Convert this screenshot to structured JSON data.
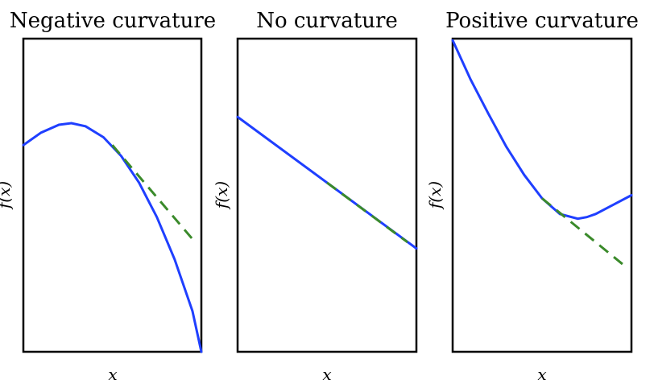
{
  "chart_data": [
    {
      "type": "line",
      "title": "Negative curvature",
      "xlabel": "x",
      "ylabel": "f(x)",
      "xlim": [
        0,
        1
      ],
      "ylim": [
        0,
        1
      ],
      "grid": false,
      "colors": {
        "function": "#1f3fff",
        "tangent": "#3a8a2a"
      },
      "series": [
        {
          "style": "solid",
          "x": [
            0,
            0.1,
            0.2,
            0.27,
            0.35,
            0.45,
            0.55,
            0.65,
            0.75,
            0.85,
            0.95,
            1.0
          ],
          "y": [
            0.66,
            0.7,
            0.725,
            0.73,
            0.72,
            0.685,
            0.625,
            0.54,
            0.43,
            0.295,
            0.13,
            0.0
          ]
        },
        {
          "style": "dashed",
          "x": [
            0.5,
            0.95
          ],
          "y": [
            0.66,
            0.36
          ]
        }
      ]
    },
    {
      "type": "line",
      "title": "No curvature",
      "xlabel": "x",
      "ylabel": "f(x)",
      "xlim": [
        0,
        1
      ],
      "ylim": [
        0,
        1
      ],
      "grid": false,
      "colors": {
        "function": "#1f3fff",
        "tangent": "#3a8a2a"
      },
      "series": [
        {
          "style": "solid",
          "x": [
            0,
            1
          ],
          "y": [
            0.75,
            0.33
          ]
        },
        {
          "style": "dashed",
          "x": [
            0.5,
            0.95
          ],
          "y": [
            0.54,
            0.35
          ]
        }
      ]
    },
    {
      "type": "line",
      "title": "Positive curvature",
      "xlabel": "x",
      "ylabel": "f(x)",
      "xlim": [
        0,
        1
      ],
      "ylim": [
        0,
        1
      ],
      "grid": false,
      "colors": {
        "function": "#1f3fff",
        "tangent": "#3a8a2a"
      },
      "series": [
        {
          "style": "solid",
          "x": [
            0,
            0.1,
            0.2,
            0.3,
            0.4,
            0.5,
            0.6,
            0.7,
            0.75,
            0.8,
            0.9,
            1.0
          ],
          "y": [
            0.995,
            0.87,
            0.76,
            0.655,
            0.565,
            0.49,
            0.44,
            0.425,
            0.43,
            0.44,
            0.47,
            0.5
          ]
        },
        {
          "style": "dashed",
          "x": [
            0.5,
            0.95
          ],
          "y": [
            0.49,
            0.28
          ]
        }
      ]
    }
  ]
}
